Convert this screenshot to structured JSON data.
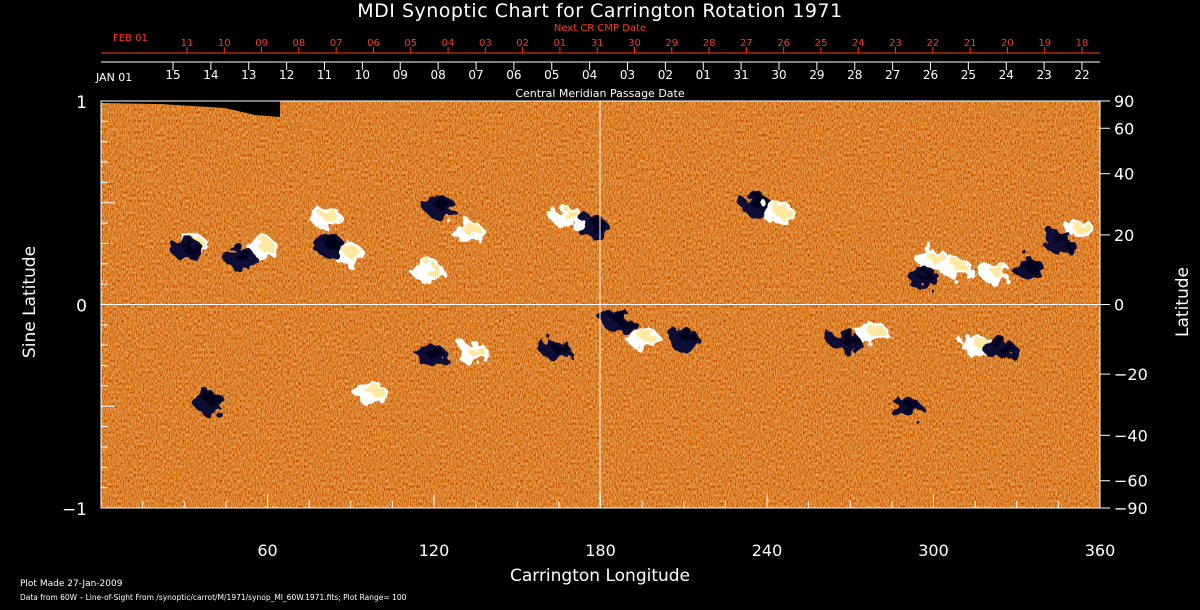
{
  "chart_data": {
    "type": "heatmap",
    "title": "MDI Synoptic Chart for Carrington Rotation 1971",
    "xlabel": "Carrington Longitude",
    "ylabel": "Sine Latitude",
    "y2label": "Latitude",
    "top_axis_label": "Central Meridian Passage Date",
    "next_axis_label": "Next CR CMP Date",
    "xlim": [
      0,
      360
    ],
    "ylim": [
      -1,
      1
    ],
    "x_ticks": [
      60,
      120,
      180,
      240,
      300,
      360
    ],
    "y_ticks": [
      {
        "value": 1,
        "label": "1"
      },
      {
        "value": 0,
        "label": "0"
      },
      {
        "value": -1,
        "label": "−1"
      }
    ],
    "latitude_ticks": [
      {
        "value": 90,
        "label": "90"
      },
      {
        "value": 60,
        "label": "60"
      },
      {
        "value": 40,
        "label": "40"
      },
      {
        "value": 20,
        "label": "20"
      },
      {
        "value": 0,
        "label": "0"
      },
      {
        "value": -20,
        "label": "−20"
      },
      {
        "value": -40,
        "label": "−40"
      },
      {
        "value": -60,
        "label": "−60"
      },
      {
        "value": -90,
        "label": "−90"
      }
    ],
    "cmp_date_ticks": [
      "15",
      "14",
      "13",
      "12",
      "11",
      "10",
      "09",
      "08",
      "07",
      "06",
      "05",
      "04",
      "03",
      "02",
      "01",
      "31",
      "30",
      "29",
      "28",
      "27",
      "26",
      "25",
      "24",
      "23",
      "22"
    ],
    "cmp_start_label": "JAN 01",
    "next_cr_date_ticks": [
      "11",
      "10",
      "09",
      "08",
      "07",
      "06",
      "05",
      "04",
      "03",
      "02",
      "01",
      "31",
      "30",
      "29",
      "28",
      "27",
      "26",
      "25",
      "24",
      "23",
      "22",
      "21",
      "20",
      "19",
      "18"
    ],
    "next_cr_start_label": "FEB 01",
    "next_cr_highlight_label": "01",
    "plot_range": 100,
    "colors": {
      "background": "#000000",
      "field_mid": "#d8491a",
      "positive": "#ffffff",
      "negative": "#100a34",
      "axis_next": "#ff3a1a"
    },
    "active_regions": [
      {
        "lon": 58,
        "lat": 0.28,
        "pos": true
      },
      {
        "lon": 50,
        "lat": 0.23,
        "pos": false
      },
      {
        "lon": 33,
        "lat": 0.29,
        "pos": true
      },
      {
        "lon": 31,
        "lat": 0.27,
        "pos": false
      },
      {
        "lon": 89,
        "lat": 0.25,
        "pos": true
      },
      {
        "lon": 82,
        "lat": 0.29,
        "pos": false
      },
      {
        "lon": 81,
        "lat": 0.43,
        "pos": true
      },
      {
        "lon": 122,
        "lat": 0.48,
        "pos": false
      },
      {
        "lon": 132,
        "lat": 0.36,
        "pos": true
      },
      {
        "lon": 118,
        "lat": 0.16,
        "pos": true
      },
      {
        "lon": 177,
        "lat": 0.38,
        "pos": false
      },
      {
        "lon": 168,
        "lat": 0.43,
        "pos": true
      },
      {
        "lon": 236,
        "lat": 0.49,
        "pos": false
      },
      {
        "lon": 244,
        "lat": 0.45,
        "pos": true
      },
      {
        "lon": 300,
        "lat": 0.22,
        "pos": true
      },
      {
        "lon": 296,
        "lat": 0.13,
        "pos": false
      },
      {
        "lon": 308,
        "lat": 0.18,
        "pos": true
      },
      {
        "lon": 352,
        "lat": 0.37,
        "pos": true
      },
      {
        "lon": 345,
        "lat": 0.31,
        "pos": false
      },
      {
        "lon": 322,
        "lat": 0.16,
        "pos": true
      },
      {
        "lon": 334,
        "lat": 0.18,
        "pos": false
      },
      {
        "lon": 195,
        "lat": -0.16,
        "pos": true
      },
      {
        "lon": 186,
        "lat": -0.08,
        "pos": false
      },
      {
        "lon": 210,
        "lat": -0.17,
        "pos": false
      },
      {
        "lon": 268,
        "lat": -0.18,
        "pos": false
      },
      {
        "lon": 278,
        "lat": -0.14,
        "pos": true
      },
      {
        "lon": 316,
        "lat": -0.2,
        "pos": true
      },
      {
        "lon": 324,
        "lat": -0.22,
        "pos": false
      },
      {
        "lon": 39,
        "lat": -0.48,
        "pos": false
      },
      {
        "lon": 119,
        "lat": -0.25,
        "pos": false
      },
      {
        "lon": 134,
        "lat": -0.24,
        "pos": true
      },
      {
        "lon": 164,
        "lat": -0.22,
        "pos": false
      },
      {
        "lon": 290,
        "lat": -0.51,
        "pos": false
      },
      {
        "lon": 97,
        "lat": -0.43,
        "pos": true
      }
    ]
  },
  "footer": {
    "plot_made": "Plot Made 27-Jan-2009",
    "data_from": "Data from 60W – Line-of-Sight From /synoptic/carrot/M/1971/synop_Ml_60W.1971.fits; Plot Range=  100"
  }
}
